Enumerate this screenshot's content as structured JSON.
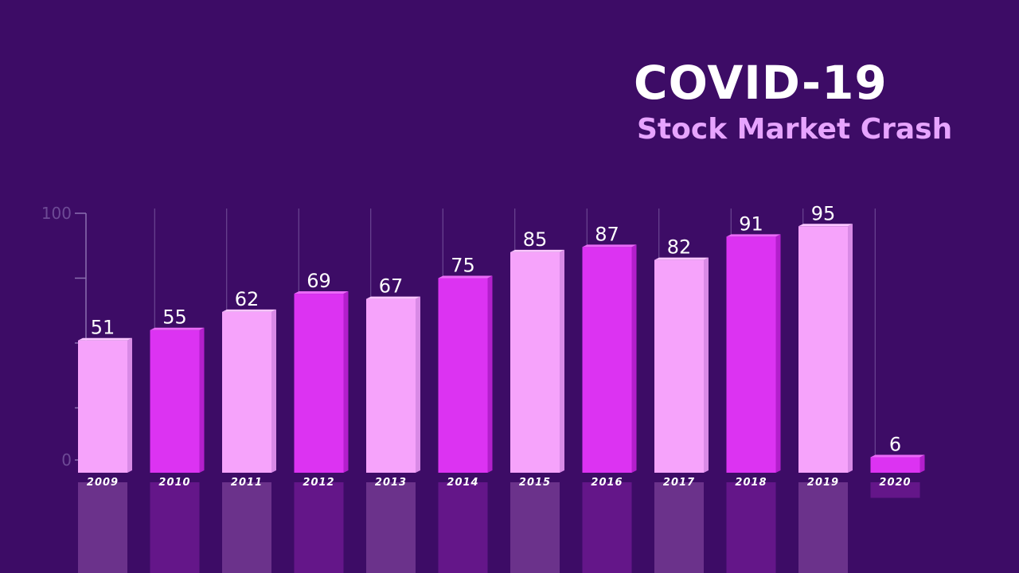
{
  "header": {
    "title": "COVID-19",
    "subtitle": "Stock Market Crash"
  },
  "colors": {
    "background": "#3d0c66",
    "bar_light": "#f6a3fb",
    "bar_dark": "#dc33f2",
    "title": "#ffffff",
    "subtitle": "#e7a4ff",
    "axis": "#8b6fb0"
  },
  "chart_data": {
    "type": "bar",
    "title": "COVID-19",
    "subtitle": "Stock Market Crash",
    "xlabel": "",
    "ylabel": "",
    "categories": [
      "2009",
      "2010",
      "2011",
      "2012",
      "2013",
      "2014",
      "2015",
      "2016",
      "2017",
      "2018",
      "2019",
      "2020"
    ],
    "values": [
      51,
      55,
      62,
      69,
      67,
      75,
      85,
      87,
      82,
      91,
      95,
      6
    ],
    "ylim": [
      0,
      100
    ],
    "yticks": [
      0,
      100
    ],
    "grid": "vertical",
    "bar_color_pattern": [
      "light",
      "dark",
      "light",
      "dark",
      "light",
      "dark",
      "light",
      "dark",
      "light",
      "dark",
      "light",
      "dark"
    ],
    "data_labels": true
  }
}
